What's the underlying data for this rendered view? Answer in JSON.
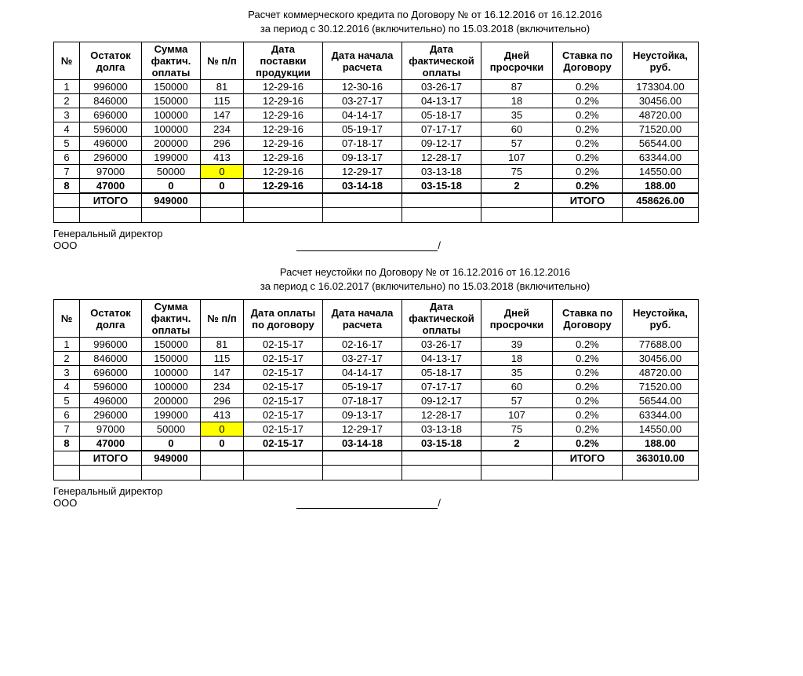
{
  "sections": [
    {
      "title1": "Расчет коммерческого кредита по Договору № от 16.12.2016 от 16.12.2016",
      "title2": "за период с 30.12.2016 (включительно) по 15.03.2018 (включительно)",
      "headers": {
        "idx": "№",
        "balance": "Остаток долга",
        "paid": "Сумма фактич. оплаты",
        "npp": "№ п/п",
        "date1": "Дата поставки продукции",
        "date2": "Дата начала расчета",
        "date3": "Дата фактической оплаты",
        "days": "Дней просрочки",
        "rate": "Ставка по Договору",
        "penalty": "Неустойка, руб."
      },
      "rows": [
        {
          "i": "1",
          "bal": "996000",
          "pay": "150000",
          "npp": "81",
          "d1": "12-29-16",
          "d2": "12-30-16",
          "d3": "03-26-17",
          "days": "87",
          "rate": "0.2%",
          "pen": "173304.00"
        },
        {
          "i": "2",
          "bal": "846000",
          "pay": "150000",
          "npp": "115",
          "d1": "12-29-16",
          "d2": "03-27-17",
          "d3": "04-13-17",
          "days": "18",
          "rate": "0.2%",
          "pen": "30456.00"
        },
        {
          "i": "3",
          "bal": "696000",
          "pay": "100000",
          "npp": "147",
          "d1": "12-29-16",
          "d2": "04-14-17",
          "d3": "05-18-17",
          "days": "35",
          "rate": "0.2%",
          "pen": "48720.00"
        },
        {
          "i": "4",
          "bal": "596000",
          "pay": "100000",
          "npp": "234",
          "d1": "12-29-16",
          "d2": "05-19-17",
          "d3": "07-17-17",
          "days": "60",
          "rate": "0.2%",
          "pen": "71520.00"
        },
        {
          "i": "5",
          "bal": "496000",
          "pay": "200000",
          "npp": "296",
          "d1": "12-29-16",
          "d2": "07-18-17",
          "d3": "09-12-17",
          "days": "57",
          "rate": "0.2%",
          "pen": "56544.00"
        },
        {
          "i": "6",
          "bal": "296000",
          "pay": "199000",
          "npp": "413",
          "d1": "12-29-16",
          "d2": "09-13-17",
          "d3": "12-28-17",
          "days": "107",
          "rate": "0.2%",
          "pen": "63344.00"
        },
        {
          "i": "7",
          "bal": "97000",
          "pay": "50000",
          "npp": "0",
          "d1": "12-29-16",
          "d2": "12-29-17",
          "d3": "03-13-18",
          "days": "75",
          "rate": "0.2%",
          "pen": "14550.00",
          "hl": "npp"
        },
        {
          "i": "8",
          "bal": "47000",
          "pay": "0",
          "npp": "0",
          "d1": "12-29-16",
          "d2": "03-14-18",
          "d3": "03-15-18",
          "days": "2",
          "rate": "0.2%",
          "pen": "188.00",
          "bold": true
        }
      ],
      "totals": {
        "labelL": "ИТОГО",
        "sumPay": "949000",
        "labelR": "ИТОГО",
        "sumPen": "458626.00"
      },
      "sign": {
        "role": "Генеральный директор",
        "org": "ООО"
      }
    },
    {
      "title1": "Расчет неустойки по Договору № от 16.12.2016 от 16.12.2016",
      "title2": "за период с 16.02.2017 (включительно) по 15.03.2018 (включительно)",
      "headers": {
        "idx": "№",
        "balance": "Остаток долга",
        "paid": "Сумма фактич. оплаты",
        "npp": "№ п/п",
        "date1": "Дата оплаты по договору",
        "date2": "Дата начала расчета",
        "date3": "Дата фактической оплаты",
        "days": "Дней просрочки",
        "rate": "Ставка по Договору",
        "penalty": "Неустойка, руб."
      },
      "rows": [
        {
          "i": "1",
          "bal": "996000",
          "pay": "150000",
          "npp": "81",
          "d1": "02-15-17",
          "d2": "02-16-17",
          "d3": "03-26-17",
          "days": "39",
          "rate": "0.2%",
          "pen": "77688.00"
        },
        {
          "i": "2",
          "bal": "846000",
          "pay": "150000",
          "npp": "115",
          "d1": "02-15-17",
          "d2": "03-27-17",
          "d3": "04-13-17",
          "days": "18",
          "rate": "0.2%",
          "pen": "30456.00"
        },
        {
          "i": "3",
          "bal": "696000",
          "pay": "100000",
          "npp": "147",
          "d1": "02-15-17",
          "d2": "04-14-17",
          "d3": "05-18-17",
          "days": "35",
          "rate": "0.2%",
          "pen": "48720.00"
        },
        {
          "i": "4",
          "bal": "596000",
          "pay": "100000",
          "npp": "234",
          "d1": "02-15-17",
          "d2": "05-19-17",
          "d3": "07-17-17",
          "days": "60",
          "rate": "0.2%",
          "pen": "71520.00"
        },
        {
          "i": "5",
          "bal": "496000",
          "pay": "200000",
          "npp": "296",
          "d1": "02-15-17",
          "d2": "07-18-17",
          "d3": "09-12-17",
          "days": "57",
          "rate": "0.2%",
          "pen": "56544.00"
        },
        {
          "i": "6",
          "bal": "296000",
          "pay": "199000",
          "npp": "413",
          "d1": "02-15-17",
          "d2": "09-13-17",
          "d3": "12-28-17",
          "days": "107",
          "rate": "0.2%",
          "pen": "63344.00"
        },
        {
          "i": "7",
          "bal": "97000",
          "pay": "50000",
          "npp": "0",
          "d1": "02-15-17",
          "d2": "12-29-17",
          "d3": "03-13-18",
          "days": "75",
          "rate": "0.2%",
          "pen": "14550.00",
          "hl": "npp"
        },
        {
          "i": "8",
          "bal": "47000",
          "pay": "0",
          "npp": "0",
          "d1": "02-15-17",
          "d2": "03-14-18",
          "d3": "03-15-18",
          "days": "2",
          "rate": "0.2%",
          "pen": "188.00",
          "bold": true
        }
      ],
      "totals": {
        "labelL": "ИТОГО",
        "sumPay": "949000",
        "labelR": "ИТОГО",
        "sumPen": "363010.00"
      },
      "sign": {
        "role": "Генеральный директор",
        "org": "ООО"
      }
    }
  ],
  "highlight_color": "#ffff00"
}
